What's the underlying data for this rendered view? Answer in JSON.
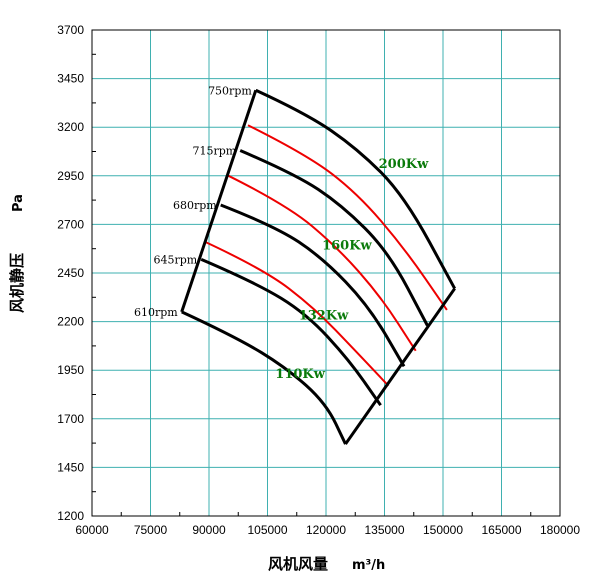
{
  "chart_data": {
    "type": "line",
    "xlabel": "风机风量",
    "xunit": "m³/h",
    "ylabel": "风机静压",
    "yunit": "Pa",
    "xlim": [
      60000,
      180000
    ],
    "ylim": [
      1200,
      3700
    ],
    "xticks": [
      60000,
      75000,
      90000,
      105000,
      120000,
      135000,
      150000,
      165000,
      180000
    ],
    "yticks": [
      1200,
      1450,
      1700,
      1950,
      2200,
      2450,
      2700,
      2950,
      3200,
      3450,
      3700
    ],
    "grid": true,
    "colors": {
      "grid": "#3fb0b0",
      "speed": "#000000",
      "power": "#ee0000",
      "power_label": "#0a7a0a"
    },
    "envelope": [
      {
        "x": 83000,
        "y": 2250
      },
      {
        "x": 102000,
        "y": 3390
      },
      {
        "x": 153000,
        "y": 2370
      },
      {
        "x": 125000,
        "y": 1570
      }
    ],
    "speed_curves": [
      {
        "label": "750rpm",
        "points": [
          [
            102000,
            3390
          ],
          [
            115000,
            3270
          ],
          [
            128000,
            3090
          ],
          [
            140000,
            2850
          ],
          [
            153000,
            2370
          ]
        ]
      },
      {
        "label": "715rpm",
        "points": [
          [
            98000,
            3080
          ],
          [
            112000,
            2960
          ],
          [
            124000,
            2800
          ],
          [
            136000,
            2560
          ],
          [
            146000,
            2180
          ]
        ]
      },
      {
        "label": "680rpm",
        "points": [
          [
            93000,
            2800
          ],
          [
            107000,
            2690
          ],
          [
            119000,
            2530
          ],
          [
            131000,
            2280
          ],
          [
            140000,
            1970
          ]
        ]
      },
      {
        "label": "645rpm",
        "points": [
          [
            88000,
            2520
          ],
          [
            102000,
            2400
          ],
          [
            115000,
            2240
          ],
          [
            126000,
            2000
          ],
          [
            134000,
            1770
          ]
        ]
      },
      {
        "label": "610rpm",
        "points": [
          [
            83000,
            2250
          ],
          [
            97000,
            2120
          ],
          [
            110000,
            1960
          ],
          [
            120000,
            1780
          ],
          [
            125000,
            1570
          ]
        ]
      }
    ],
    "power_curves": [
      {
        "label": "200Kw",
        "points": [
          [
            100000,
            3210
          ],
          [
            115000,
            3060
          ],
          [
            128000,
            2860
          ],
          [
            140000,
            2580
          ],
          [
            151000,
            2260
          ]
        ]
      },
      {
        "label": "160Kw",
        "points": [
          [
            95000,
            2950
          ],
          [
            110000,
            2800
          ],
          [
            123000,
            2580
          ],
          [
            134000,
            2330
          ],
          [
            143000,
            2050
          ]
        ]
      },
      {
        "label": "132Kw",
        "points": [
          [
            89000,
            2610
          ],
          [
            104000,
            2470
          ],
          [
            117000,
            2270
          ],
          [
            128000,
            2040
          ],
          [
            136000,
            1870
          ]
        ]
      },
      {
        "label": "110Kw",
        "points": []
      }
    ]
  }
}
